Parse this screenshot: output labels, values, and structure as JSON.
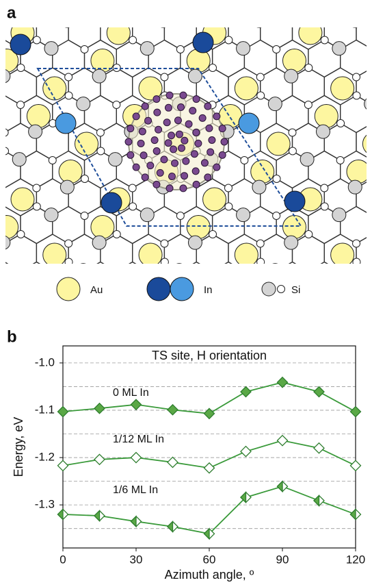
{
  "panel_a": {
    "label": "a",
    "legend": [
      "Au",
      "In",
      "Si"
    ]
  },
  "chart_data": {
    "type": "line",
    "panel_label": "b",
    "title": "TS  site, H orientation",
    "x_label": "Azimuth angle, º",
    "y_label": "Energy, eV",
    "x": [
      0,
      15,
      30,
      45,
      60,
      75,
      90,
      105,
      120
    ],
    "series": [
      {
        "name": "0 ML In",
        "color": "#5aa846",
        "marker": "filled",
        "values": [
          -1.103,
          -1.096,
          -1.088,
          -1.099,
          -1.107,
          -1.061,
          -1.041,
          -1.061,
          -1.103
        ]
      },
      {
        "name": "1/12 ML In",
        "color": "#5aa846",
        "marker": "open",
        "values": [
          -1.217,
          -1.204,
          -1.2,
          -1.21,
          -1.222,
          -1.187,
          -1.164,
          -1.18,
          -1.217
        ]
      },
      {
        "name": "1/6 ML In",
        "color": "#5aa846",
        "marker": "half",
        "values": [
          -1.32,
          -1.323,
          -1.335,
          -1.346,
          -1.361,
          -1.284,
          -1.261,
          -1.291,
          -1.32
        ]
      }
    ],
    "xlim": [
      0,
      120
    ],
    "xticks": [
      0,
      30,
      60,
      90,
      120
    ],
    "ylim": [
      -1.391,
      -0.964
    ],
    "yticks": [
      {
        "value": -1.0,
        "label": "-1.0"
      },
      {
        "value": -1.1,
        "label": "-1.1"
      },
      {
        "value": -1.2,
        "label": "-1.2"
      },
      {
        "value": -1.3,
        "label": "-1.3"
      }
    ],
    "minor_grid": [
      -1.05,
      -1.15,
      -1.25,
      -1.35
    ],
    "grid": true
  }
}
